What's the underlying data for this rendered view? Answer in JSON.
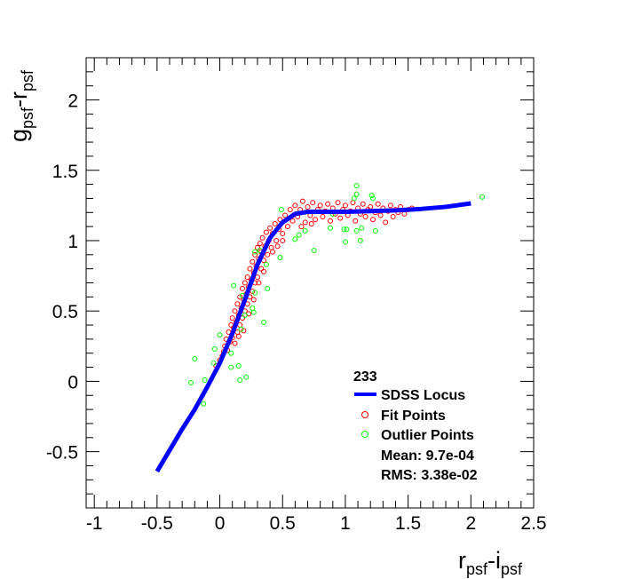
{
  "chart_data": {
    "type": "scatter",
    "title": "",
    "xlabel": {
      "main1": "r",
      "sub1": "psf",
      "main2": "-i",
      "sub2": "psf"
    },
    "ylabel": {
      "main1": "g",
      "sub1": "psf",
      "main2": "-r",
      "sub2": "psf"
    },
    "xlim": [
      -1.065,
      2.5
    ],
    "ylim": [
      -0.9,
      2.3
    ],
    "xticks": [
      -1,
      -0.5,
      0,
      0.5,
      1,
      1.5,
      2,
      2.5
    ],
    "xtick_labels": [
      "-1",
      "-0.5",
      "0",
      "0.5",
      "1",
      "1.5",
      "2",
      "2.5"
    ],
    "yticks": [
      -0.5,
      0,
      0.5,
      1,
      1.5,
      2
    ],
    "ytick_labels": [
      "-0.5",
      "0",
      "0.5",
      "1",
      "1.5",
      "2"
    ],
    "grid": false,
    "legend": {
      "placement": "bottom-right",
      "header": "233",
      "entries": [
        "SDSS Locus",
        "Fit Points",
        "Outlier Points"
      ],
      "mean": "Mean: 9.7e-04",
      "rms": "RMS: 3.38e-02"
    },
    "colors": {
      "locus": "#0000ff",
      "fit": "#ff0000",
      "outlier": "#00ff00"
    },
    "series": [
      {
        "name": "SDSS Locus",
        "kind": "line",
        "points": [
          [
            -0.5,
            -0.64
          ],
          [
            -0.4,
            -0.49
          ],
          [
            -0.3,
            -0.34
          ],
          [
            -0.2,
            -0.2
          ],
          [
            -0.1,
            -0.04
          ],
          [
            0,
            0.13
          ],
          [
            0.1,
            0.34
          ],
          [
            0.2,
            0.58
          ],
          [
            0.3,
            0.83
          ],
          [
            0.4,
            1.02
          ],
          [
            0.5,
            1.13
          ],
          [
            0.6,
            1.19
          ],
          [
            0.7,
            1.205
          ],
          [
            0.85,
            1.205
          ],
          [
            1.0,
            1.205
          ],
          [
            1.2,
            1.21
          ],
          [
            1.4,
            1.215
          ],
          [
            1.6,
            1.225
          ],
          [
            1.8,
            1.24
          ],
          [
            2.0,
            1.265
          ]
        ]
      },
      {
        "name": "Fit Points",
        "kind": "scatter",
        "points": [
          [
            0.02,
            0.18
          ],
          [
            0.04,
            0.25
          ],
          [
            0.05,
            0.3
          ],
          [
            0.06,
            0.22
          ],
          [
            0.07,
            0.35
          ],
          [
            0.08,
            0.28
          ],
          [
            0.09,
            0.4
          ],
          [
            0.1,
            0.31
          ],
          [
            0.1,
            0.45
          ],
          [
            0.11,
            0.38
          ],
          [
            0.12,
            0.5
          ],
          [
            0.12,
            0.27
          ],
          [
            0.13,
            0.42
          ],
          [
            0.14,
            0.55
          ],
          [
            0.14,
            0.35
          ],
          [
            0.15,
            0.47
          ],
          [
            0.16,
            0.6
          ],
          [
            0.16,
            0.4
          ],
          [
            0.17,
            0.52
          ],
          [
            0.18,
            0.66
          ],
          [
            0.18,
            0.45
          ],
          [
            0.19,
            0.58
          ],
          [
            0.2,
            0.7
          ],
          [
            0.2,
            0.5
          ],
          [
            0.21,
            0.62
          ],
          [
            0.22,
            0.74
          ],
          [
            0.22,
            0.55
          ],
          [
            0.23,
            0.67
          ],
          [
            0.24,
            0.8
          ],
          [
            0.24,
            0.6
          ],
          [
            0.25,
            0.72
          ],
          [
            0.26,
            0.85
          ],
          [
            0.26,
            0.64
          ],
          [
            0.27,
            0.77
          ],
          [
            0.28,
            0.9
          ],
          [
            0.28,
            0.7
          ],
          [
            0.29,
            0.82
          ],
          [
            0.3,
            0.95
          ],
          [
            0.3,
            0.74
          ],
          [
            0.31,
            0.87
          ],
          [
            0.32,
            0.98
          ],
          [
            0.33,
            0.8
          ],
          [
            0.33,
            0.92
          ],
          [
            0.34,
            1.02
          ],
          [
            0.35,
            0.86
          ],
          [
            0.36,
            0.96
          ],
          [
            0.37,
            1.06
          ],
          [
            0.38,
            0.9
          ],
          [
            0.39,
            1.0
          ],
          [
            0.4,
            1.09
          ],
          [
            0.41,
            0.95
          ],
          [
            0.42,
            1.05
          ],
          [
            0.44,
            1.12
          ],
          [
            0.45,
            1.0
          ],
          [
            0.47,
            1.08
          ],
          [
            0.48,
            1.15
          ],
          [
            0.5,
            1.05
          ],
          [
            0.52,
            1.18
          ],
          [
            0.54,
            1.1
          ],
          [
            0.56,
            1.22
          ],
          [
            0.58,
            1.14
          ],
          [
            0.6,
            1.25
          ],
          [
            0.62,
            1.17
          ],
          [
            0.64,
            1.22
          ],
          [
            0.66,
            1.28
          ],
          [
            0.68,
            1.13
          ],
          [
            0.7,
            1.24
          ],
          [
            0.72,
            1.18
          ],
          [
            0.74,
            1.27
          ],
          [
            0.76,
            1.15
          ],
          [
            0.78,
            1.22
          ],
          [
            0.8,
            1.25
          ],
          [
            0.82,
            1.17
          ],
          [
            0.84,
            1.21
          ],
          [
            0.86,
            1.26
          ],
          [
            0.88,
            1.14
          ],
          [
            0.9,
            1.23
          ],
          [
            0.92,
            1.19
          ],
          [
            0.94,
            1.27
          ],
          [
            0.96,
            1.16
          ],
          [
            0.98,
            1.22
          ],
          [
            1.0,
            1.25
          ],
          [
            1.02,
            1.18
          ],
          [
            1.04,
            1.21
          ],
          [
            1.06,
            1.27
          ],
          [
            1.08,
            1.14
          ],
          [
            1.1,
            1.23
          ],
          [
            1.12,
            1.19
          ],
          [
            1.14,
            1.26
          ],
          [
            1.16,
            1.17
          ],
          [
            1.18,
            1.22
          ],
          [
            1.2,
            1.24
          ],
          [
            1.22,
            1.15
          ],
          [
            1.24,
            1.2
          ],
          [
            1.26,
            1.26
          ],
          [
            1.28,
            1.18
          ],
          [
            1.3,
            1.23
          ],
          [
            1.32,
            1.13
          ],
          [
            1.34,
            1.21
          ],
          [
            1.36,
            1.25
          ],
          [
            1.38,
            1.17
          ],
          [
            1.4,
            1.22
          ],
          [
            1.42,
            1.2
          ],
          [
            1.44,
            1.24
          ],
          [
            1.47,
            1.19
          ],
          [
            1.5,
            1.22
          ],
          [
            1.53,
            1.23
          ],
          [
            0.15,
            0.32
          ],
          [
            0.19,
            0.36
          ],
          [
            0.23,
            0.48
          ],
          [
            0.27,
            0.58
          ],
          [
            0.31,
            0.7
          ],
          [
            0.35,
            0.78
          ],
          [
            0.42,
            0.92
          ],
          [
            0.46,
            0.96
          ],
          [
            0.5,
            1.0
          ],
          [
            0.65,
            1.1
          ],
          [
            0.73,
            1.12
          ],
          [
            0.03,
            0.21
          ],
          [
            -0.03,
            0.11
          ],
          [
            0.0,
            0.15
          ]
        ]
      },
      {
        "name": "Outlier Points",
        "kind": "scatter",
        "points": [
          [
            1.09,
            1.39
          ],
          [
            2.09,
            1.31
          ],
          [
            1.09,
            1.33
          ],
          [
            1.21,
            1.32
          ],
          [
            1.22,
            1.3
          ],
          [
            1.07,
            1.3
          ],
          [
            0.49,
            1.22
          ],
          [
            0.9,
            1.19
          ],
          [
            0.68,
            1.07
          ],
          [
            0.63,
            1.04
          ],
          [
            0.6,
            1.01
          ],
          [
            0.88,
            1.09
          ],
          [
            0.99,
            1.08
          ],
          [
            1.01,
            1.08
          ],
          [
            1.13,
            1.09
          ],
          [
            1.09,
            1.07
          ],
          [
            1.24,
            1.07
          ],
          [
            1.12,
            1.0
          ],
          [
            1.0,
            0.99
          ],
          [
            0.75,
            0.93
          ],
          [
            0.48,
            0.88
          ],
          [
            0.32,
            0.93
          ],
          [
            0.28,
            0.92
          ],
          [
            0.37,
            0.83
          ],
          [
            0.11,
            0.68
          ],
          [
            0.38,
            0.66
          ],
          [
            0.18,
            0.61
          ],
          [
            0.28,
            0.63
          ],
          [
            0.26,
            0.52
          ],
          [
            0.27,
            0.49
          ],
          [
            0.2,
            0.47
          ],
          [
            0.35,
            0.42
          ],
          [
            0.17,
            0.37
          ],
          [
            0.0,
            0.33
          ],
          [
            0.09,
            0.2
          ],
          [
            -0.04,
            0.23
          ],
          [
            0.09,
            0.1
          ],
          [
            0.15,
            0.11
          ],
          [
            -0.05,
            0.13
          ],
          [
            -0.2,
            0.16
          ],
          [
            0.16,
            0.01
          ],
          [
            0.21,
            0.03
          ],
          [
            -0.23,
            -0.01
          ],
          [
            -0.12,
            0.01
          ],
          [
            -0.13,
            -0.16
          ]
        ]
      }
    ]
  }
}
